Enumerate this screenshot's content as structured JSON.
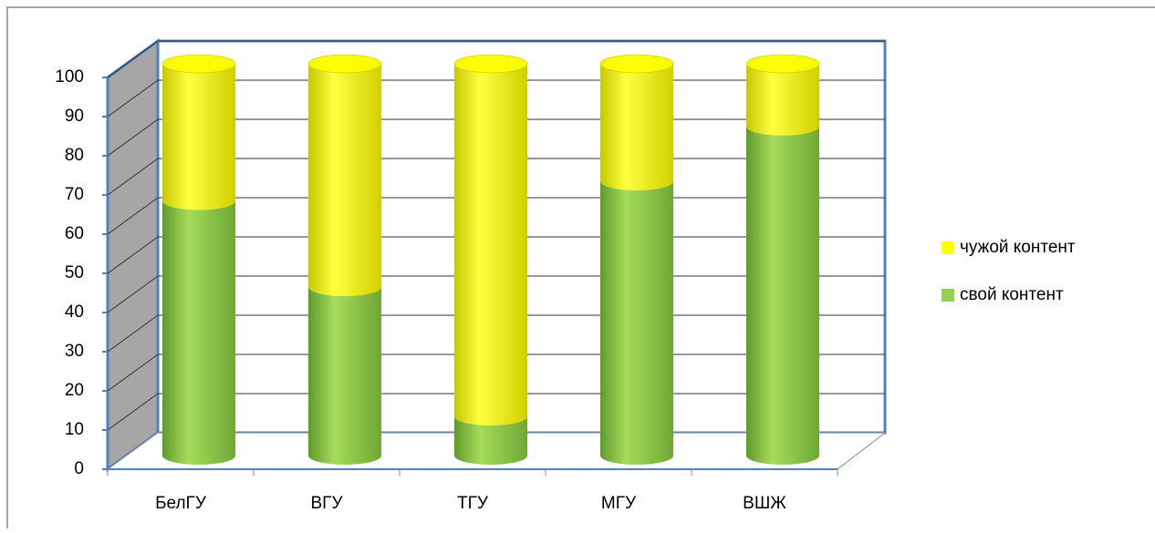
{
  "chart_data": {
    "type": "bar3d-stacked",
    "categories": [
      "БелГУ",
      "ВГУ",
      "ТГУ",
      "МГУ",
      "ВШЖ"
    ],
    "series": [
      {
        "name": "свой контент",
        "color": "#92d050",
        "values": [
          65,
          43,
          10,
          70,
          84
        ]
      },
      {
        "name": "чужой контент",
        "color": "#ffff00",
        "values": [
          35,
          57,
          90,
          30,
          16
        ]
      }
    ],
    "ylim": [
      0,
      100
    ],
    "yticks": [
      0,
      10,
      20,
      30,
      40,
      50,
      60,
      70,
      80,
      90,
      100
    ],
    "grid": true,
    "legend": "right"
  }
}
